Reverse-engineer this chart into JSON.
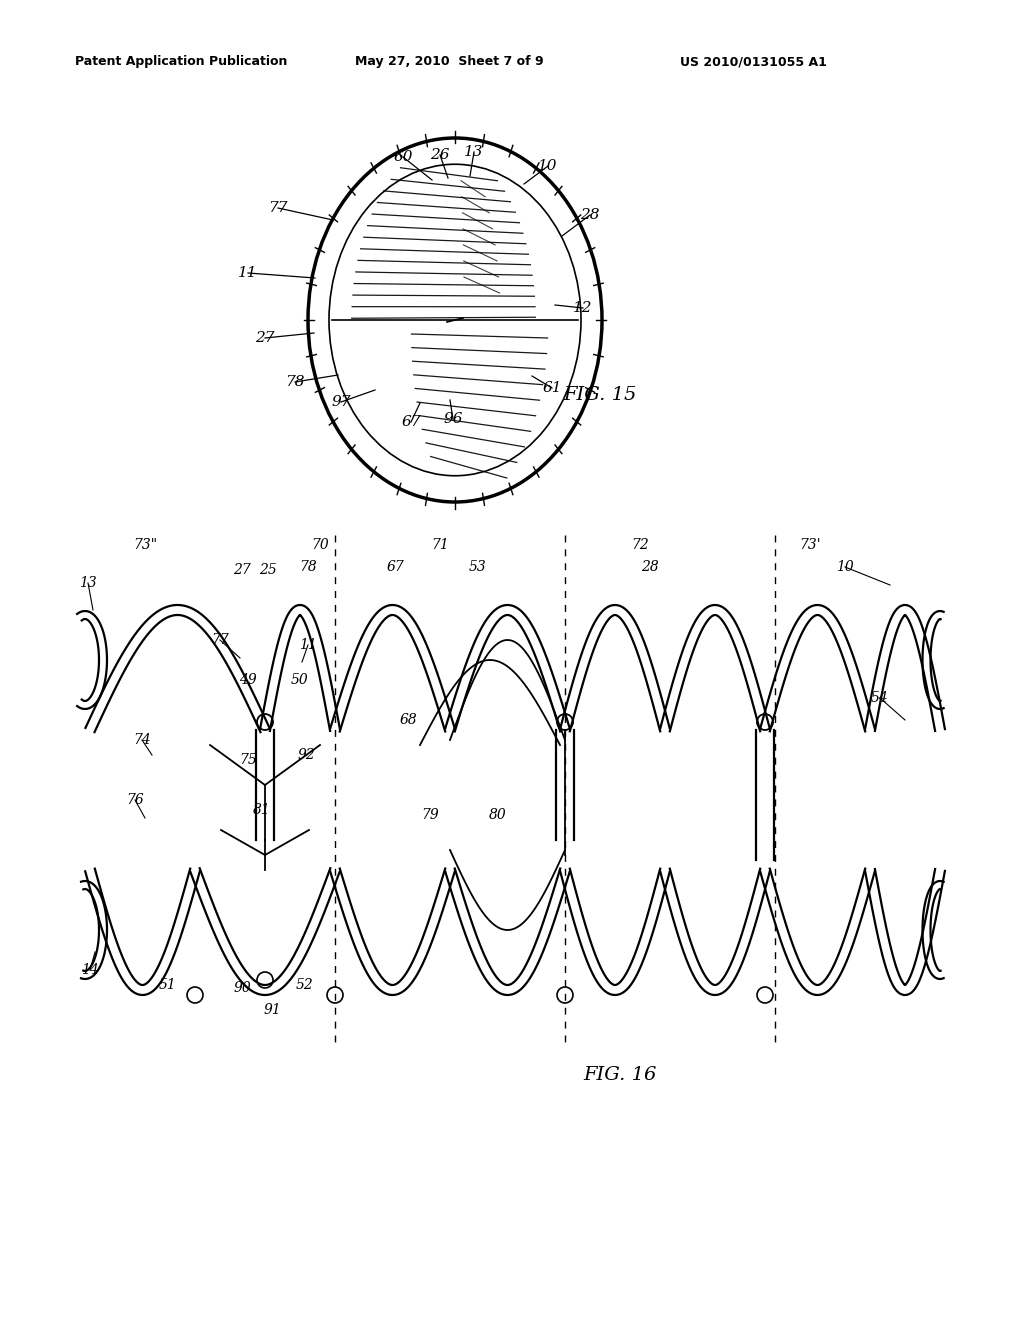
{
  "bg_color": "#ffffff",
  "header_left": "Patent Application Publication",
  "header_center": "May 27, 2010  Sheet 7 of 9",
  "header_right": "US 2010/0131055 A1",
  "fig15_label": "FIG. 15",
  "fig16_label": "FIG. 16"
}
